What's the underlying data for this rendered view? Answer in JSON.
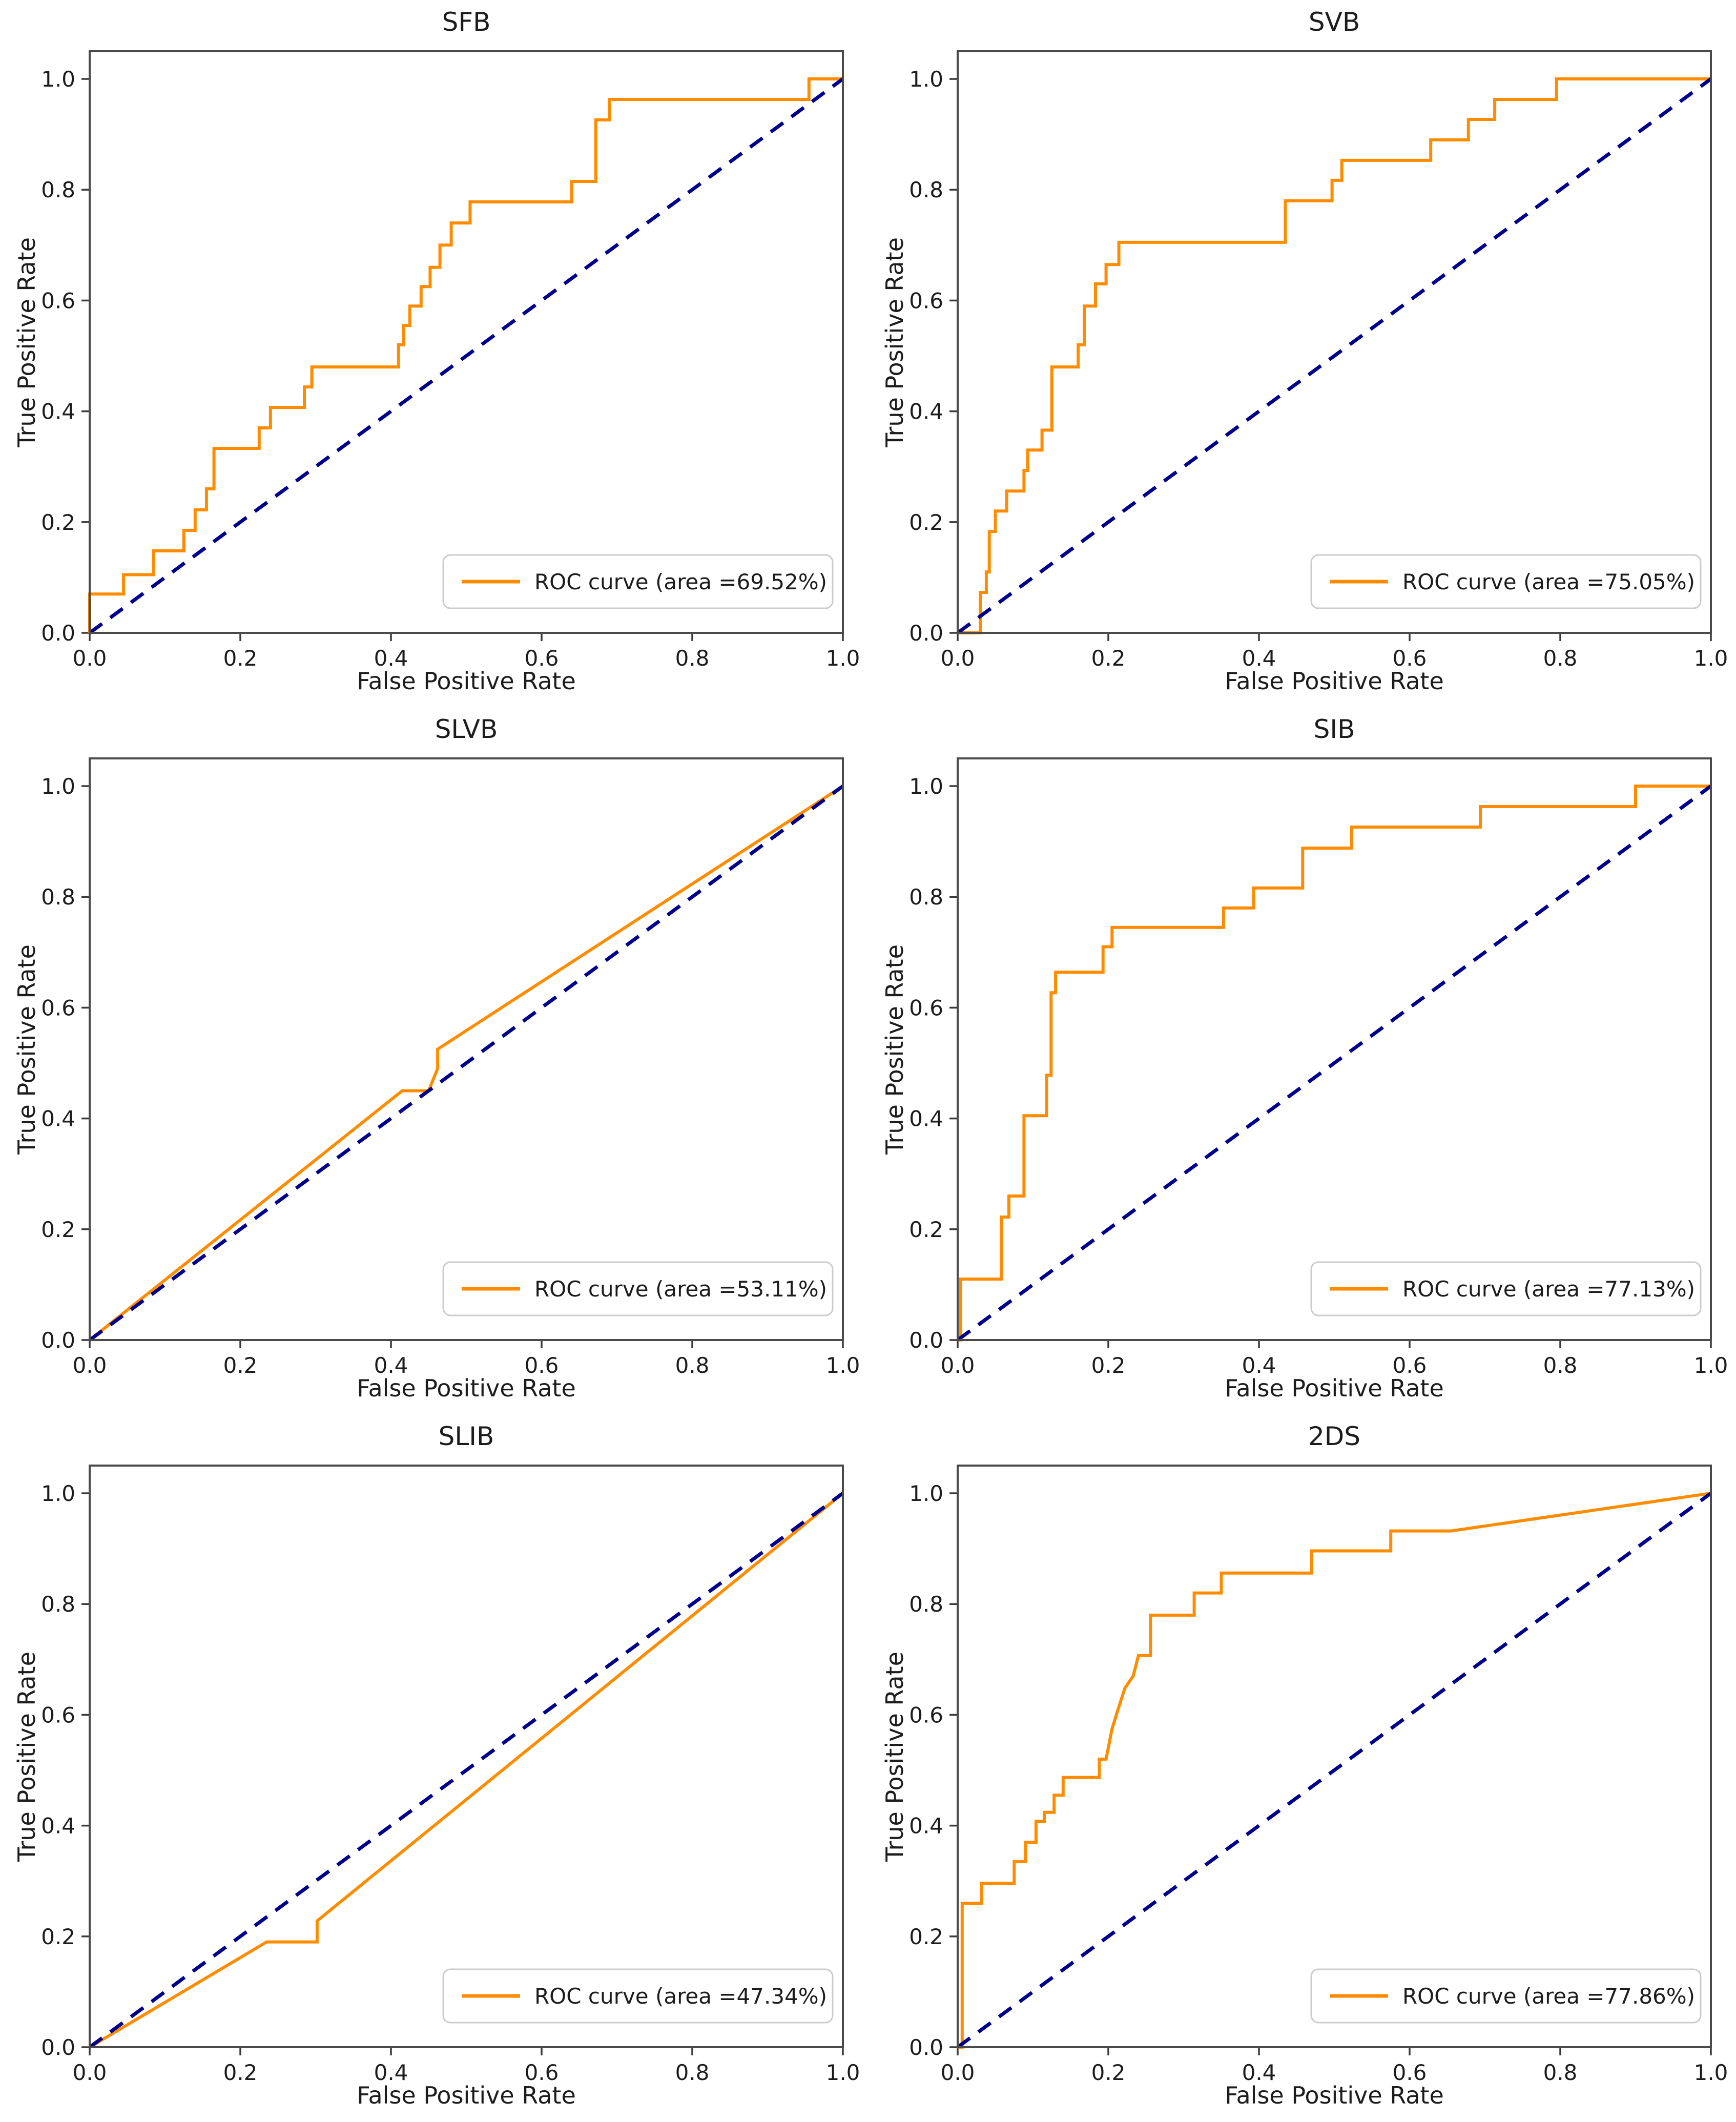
{
  "page": {
    "background": "#ffffff"
  },
  "styles": {
    "roc_color": "#ff8c00",
    "diagonal_color": "#00008b",
    "frame_color": "#4a4a4a",
    "tick_color": "#3a3a3a",
    "text_color": "#1c1c1c",
    "legend_border": "#cccccc",
    "legend_bg": "#ffffff"
  },
  "chart_data": [
    {
      "type": "line",
      "title": "SFB",
      "xlabel": "False Positive Rate",
      "ylabel": "True Positive Rate",
      "legend_label": "ROC curve (area =69.52%)",
      "auc_percent": 69.52,
      "xlim": [
        0,
        1
      ],
      "ylim": [
        0,
        1.05
      ],
      "x_tick_labels": [
        "0.0",
        "0.2",
        "0.4",
        "0.6",
        "0.8",
        "1.0"
      ],
      "y_tick_labels": [
        "0.0",
        "0.2",
        "0.4",
        "0.6",
        "0.8",
        "1.0"
      ],
      "x_tick_values": [
        0,
        0.2,
        0.4,
        0.6,
        0.8,
        1.0
      ],
      "y_tick_values": [
        0,
        0.2,
        0.4,
        0.6,
        0.8,
        1.0
      ],
      "legend_position": "lower right",
      "grid": false,
      "series": [
        {
          "name": "ROC curve",
          "style": "solid",
          "points": [
            [
              0,
              0
            ],
            [
              0,
              0.07
            ],
            [
              0.045,
              0.07
            ],
            [
              0.045,
              0.105
            ],
            [
              0.085,
              0.105
            ],
            [
              0.085,
              0.148
            ],
            [
              0.125,
              0.148
            ],
            [
              0.125,
              0.185
            ],
            [
              0.14,
              0.185
            ],
            [
              0.14,
              0.222
            ],
            [
              0.155,
              0.222
            ],
            [
              0.155,
              0.26
            ],
            [
              0.165,
              0.26
            ],
            [
              0.165,
              0.333
            ],
            [
              0.225,
              0.333
            ],
            [
              0.225,
              0.37
            ],
            [
              0.24,
              0.37
            ],
            [
              0.24,
              0.407
            ],
            [
              0.285,
              0.407
            ],
            [
              0.285,
              0.444
            ],
            [
              0.295,
              0.444
            ],
            [
              0.295,
              0.48
            ],
            [
              0.41,
              0.48
            ],
            [
              0.41,
              0.52
            ],
            [
              0.417,
              0.52
            ],
            [
              0.417,
              0.555
            ],
            [
              0.425,
              0.555
            ],
            [
              0.425,
              0.59
            ],
            [
              0.44,
              0.59
            ],
            [
              0.44,
              0.625
            ],
            [
              0.452,
              0.625
            ],
            [
              0.452,
              0.66
            ],
            [
              0.465,
              0.66
            ],
            [
              0.465,
              0.7
            ],
            [
              0.48,
              0.7
            ],
            [
              0.48,
              0.74
            ],
            [
              0.505,
              0.74
            ],
            [
              0.505,
              0.778
            ],
            [
              0.64,
              0.778
            ],
            [
              0.64,
              0.815
            ],
            [
              0.672,
              0.815
            ],
            [
              0.672,
              0.926
            ],
            [
              0.69,
              0.926
            ],
            [
              0.69,
              0.963
            ],
            [
              0.955,
              0.963
            ],
            [
              0.955,
              1.0
            ],
            [
              1,
              1
            ]
          ]
        },
        {
          "name": "chance diagonal",
          "style": "dashed",
          "points": [
            [
              0,
              0
            ],
            [
              1,
              1
            ]
          ]
        }
      ]
    },
    {
      "type": "line",
      "title": "SVB",
      "xlabel": "False Positive Rate",
      "ylabel": "True Positive Rate",
      "legend_label": "ROC curve (area =75.05%)",
      "auc_percent": 75.05,
      "xlim": [
        0,
        1
      ],
      "ylim": [
        0,
        1.05
      ],
      "x_tick_labels": [
        "0.0",
        "0.2",
        "0.4",
        "0.6",
        "0.8",
        "1.0"
      ],
      "y_tick_labels": [
        "0.0",
        "0.2",
        "0.4",
        "0.6",
        "0.8",
        "1.0"
      ],
      "x_tick_values": [
        0,
        0.2,
        0.4,
        0.6,
        0.8,
        1.0
      ],
      "y_tick_values": [
        0,
        0.2,
        0.4,
        0.6,
        0.8,
        1.0
      ],
      "legend_position": "lower right",
      "grid": false,
      "series": [
        {
          "name": "ROC curve",
          "style": "solid",
          "points": [
            [
              0,
              0
            ],
            [
              0.03,
              0
            ],
            [
              0.03,
              0.073
            ],
            [
              0.038,
              0.073
            ],
            [
              0.038,
              0.11
            ],
            [
              0.042,
              0.11
            ],
            [
              0.042,
              0.183
            ],
            [
              0.05,
              0.183
            ],
            [
              0.05,
              0.22
            ],
            [
              0.065,
              0.22
            ],
            [
              0.065,
              0.256
            ],
            [
              0.088,
              0.256
            ],
            [
              0.088,
              0.293
            ],
            [
              0.093,
              0.293
            ],
            [
              0.093,
              0.33
            ],
            [
              0.112,
              0.33
            ],
            [
              0.112,
              0.366
            ],
            [
              0.125,
              0.366
            ],
            [
              0.125,
              0.48
            ],
            [
              0.16,
              0.48
            ],
            [
              0.16,
              0.52
            ],
            [
              0.168,
              0.52
            ],
            [
              0.168,
              0.59
            ],
            [
              0.183,
              0.59
            ],
            [
              0.183,
              0.63
            ],
            [
              0.197,
              0.63
            ],
            [
              0.197,
              0.665
            ],
            [
              0.214,
              0.665
            ],
            [
              0.214,
              0.705
            ],
            [
              0.435,
              0.705
            ],
            [
              0.435,
              0.78
            ],
            [
              0.497,
              0.78
            ],
            [
              0.497,
              0.817
            ],
            [
              0.51,
              0.817
            ],
            [
              0.51,
              0.853
            ],
            [
              0.628,
              0.853
            ],
            [
              0.628,
              0.89
            ],
            [
              0.678,
              0.89
            ],
            [
              0.678,
              0.927
            ],
            [
              0.713,
              0.927
            ],
            [
              0.713,
              0.963
            ],
            [
              0.795,
              0.963
            ],
            [
              0.795,
              1.0
            ],
            [
              1,
              1
            ]
          ]
        },
        {
          "name": "chance diagonal",
          "style": "dashed",
          "points": [
            [
              0,
              0
            ],
            [
              1,
              1
            ]
          ]
        }
      ]
    },
    {
      "type": "line",
      "title": "SLVB",
      "xlabel": "False Positive Rate",
      "ylabel": "True Positive Rate",
      "legend_label": "ROC curve (area =53.11%)",
      "auc_percent": 53.11,
      "xlim": [
        0,
        1
      ],
      "ylim": [
        0,
        1.05
      ],
      "x_tick_labels": [
        "0.0",
        "0.2",
        "0.4",
        "0.6",
        "0.8",
        "1.0"
      ],
      "y_tick_labels": [
        "0.0",
        "0.2",
        "0.4",
        "0.6",
        "0.8",
        "1.0"
      ],
      "x_tick_values": [
        0,
        0.2,
        0.4,
        0.6,
        0.8,
        1.0
      ],
      "y_tick_values": [
        0,
        0.2,
        0.4,
        0.6,
        0.8,
        1.0
      ],
      "legend_position": "lower right",
      "grid": false,
      "series": [
        {
          "name": "ROC curve",
          "style": "solid",
          "points": [
            [
              0,
              0
            ],
            [
              0.415,
              0.45
            ],
            [
              0.45,
              0.45
            ],
            [
              0.462,
              0.49
            ],
            [
              0.462,
              0.525
            ],
            [
              1,
              1
            ]
          ]
        },
        {
          "name": "chance diagonal",
          "style": "dashed",
          "points": [
            [
              0,
              0
            ],
            [
              1,
              1
            ]
          ]
        }
      ]
    },
    {
      "type": "line",
      "title": "SIB",
      "xlabel": "False Positive Rate",
      "ylabel": "True Positive Rate",
      "legend_label": "ROC curve (area =77.13%)",
      "auc_percent": 77.13,
      "xlim": [
        0,
        1
      ],
      "ylim": [
        0,
        1.05
      ],
      "x_tick_labels": [
        "0.0",
        "0.2",
        "0.4",
        "0.6",
        "0.8",
        "1.0"
      ],
      "y_tick_labels": [
        "0.0",
        "0.2",
        "0.4",
        "0.6",
        "0.8",
        "1.0"
      ],
      "x_tick_values": [
        0,
        0.2,
        0.4,
        0.6,
        0.8,
        1.0
      ],
      "y_tick_values": [
        0,
        0.2,
        0.4,
        0.6,
        0.8,
        1.0
      ],
      "legend_position": "lower right",
      "grid": false,
      "series": [
        {
          "name": "ROC curve",
          "style": "solid",
          "points": [
            [
              0,
              0
            ],
            [
              0.004,
              0
            ],
            [
              0.004,
              0.11
            ],
            [
              0.058,
              0.11
            ],
            [
              0.058,
              0.222
            ],
            [
              0.068,
              0.222
            ],
            [
              0.068,
              0.26
            ],
            [
              0.088,
              0.26
            ],
            [
              0.088,
              0.405
            ],
            [
              0.118,
              0.405
            ],
            [
              0.118,
              0.478
            ],
            [
              0.124,
              0.478
            ],
            [
              0.124,
              0.627
            ],
            [
              0.13,
              0.627
            ],
            [
              0.13,
              0.664
            ],
            [
              0.193,
              0.664
            ],
            [
              0.193,
              0.71
            ],
            [
              0.205,
              0.71
            ],
            [
              0.205,
              0.745
            ],
            [
              0.353,
              0.745
            ],
            [
              0.353,
              0.78
            ],
            [
              0.393,
              0.78
            ],
            [
              0.393,
              0.816
            ],
            [
              0.458,
              0.816
            ],
            [
              0.458,
              0.888
            ],
            [
              0.523,
              0.888
            ],
            [
              0.523,
              0.926
            ],
            [
              0.694,
              0.926
            ],
            [
              0.694,
              0.963
            ],
            [
              0.9,
              0.963
            ],
            [
              0.9,
              1.0
            ],
            [
              1,
              1
            ]
          ]
        },
        {
          "name": "chance diagonal",
          "style": "dashed",
          "points": [
            [
              0,
              0
            ],
            [
              1,
              1
            ]
          ]
        }
      ]
    },
    {
      "type": "line",
      "title": "SLIB",
      "xlabel": "False Positive Rate",
      "ylabel": "True Positive Rate",
      "legend_label": "ROC curve (area =47.34%)",
      "auc_percent": 47.34,
      "xlim": [
        0,
        1
      ],
      "ylim": [
        0,
        1.05
      ],
      "x_tick_labels": [
        "0.0",
        "0.2",
        "0.4",
        "0.6",
        "0.8",
        "1.0"
      ],
      "y_tick_labels": [
        "0.0",
        "0.2",
        "0.4",
        "0.6",
        "0.8",
        "1.0"
      ],
      "x_tick_values": [
        0,
        0.2,
        0.4,
        0.6,
        0.8,
        1.0
      ],
      "y_tick_values": [
        0,
        0.2,
        0.4,
        0.6,
        0.8,
        1.0
      ],
      "legend_position": "lower right",
      "grid": false,
      "series": [
        {
          "name": "ROC curve",
          "style": "solid",
          "points": [
            [
              0,
              0
            ],
            [
              0.235,
              0.19
            ],
            [
              0.302,
              0.19
            ],
            [
              0.302,
              0.228
            ],
            [
              1,
              1
            ]
          ]
        },
        {
          "name": "chance diagonal",
          "style": "dashed",
          "points": [
            [
              0,
              0
            ],
            [
              1,
              1
            ]
          ]
        }
      ]
    },
    {
      "type": "line",
      "title": "2DS",
      "xlabel": "False Positive Rate",
      "ylabel": "True Positive Rate",
      "legend_label": "ROC curve (area =77.86%)",
      "auc_percent": 77.86,
      "xlim": [
        0,
        1
      ],
      "ylim": [
        0,
        1.05
      ],
      "x_tick_labels": [
        "0.0",
        "0.2",
        "0.4",
        "0.6",
        "0.8",
        "1.0"
      ],
      "y_tick_labels": [
        "0.0",
        "0.2",
        "0.4",
        "0.6",
        "0.8",
        "1.0"
      ],
      "x_tick_values": [
        0,
        0.2,
        0.4,
        0.6,
        0.8,
        1.0
      ],
      "y_tick_values": [
        0,
        0.2,
        0.4,
        0.6,
        0.8,
        1.0
      ],
      "legend_position": "lower right",
      "grid": false,
      "series": [
        {
          "name": "ROC curve",
          "style": "solid",
          "points": [
            [
              0,
              0
            ],
            [
              0.006,
              0
            ],
            [
              0.006,
              0.26
            ],
            [
              0.032,
              0.26
            ],
            [
              0.032,
              0.296
            ],
            [
              0.075,
              0.296
            ],
            [
              0.075,
              0.335
            ],
            [
              0.09,
              0.335
            ],
            [
              0.09,
              0.37
            ],
            [
              0.104,
              0.37
            ],
            [
              0.104,
              0.408
            ],
            [
              0.115,
              0.408
            ],
            [
              0.115,
              0.424
            ],
            [
              0.128,
              0.424
            ],
            [
              0.128,
              0.455
            ],
            [
              0.14,
              0.455
            ],
            [
              0.14,
              0.487
            ],
            [
              0.188,
              0.487
            ],
            [
              0.188,
              0.52
            ],
            [
              0.197,
              0.52
            ],
            [
              0.205,
              0.575
            ],
            [
              0.213,
              0.61
            ],
            [
              0.222,
              0.648
            ],
            [
              0.233,
              0.67
            ],
            [
              0.24,
              0.707
            ],
            [
              0.256,
              0.707
            ],
            [
              0.256,
              0.78
            ],
            [
              0.314,
              0.78
            ],
            [
              0.314,
              0.82
            ],
            [
              0.35,
              0.82
            ],
            [
              0.35,
              0.856
            ],
            [
              0.47,
              0.856
            ],
            [
              0.47,
              0.896
            ],
            [
              0.575,
              0.896
            ],
            [
              0.575,
              0.932
            ],
            [
              0.655,
              0.932
            ],
            [
              1,
              1
            ]
          ]
        },
        {
          "name": "chance diagonal",
          "style": "dashed",
          "points": [
            [
              0,
              0
            ],
            [
              1,
              1
            ]
          ]
        }
      ]
    }
  ]
}
